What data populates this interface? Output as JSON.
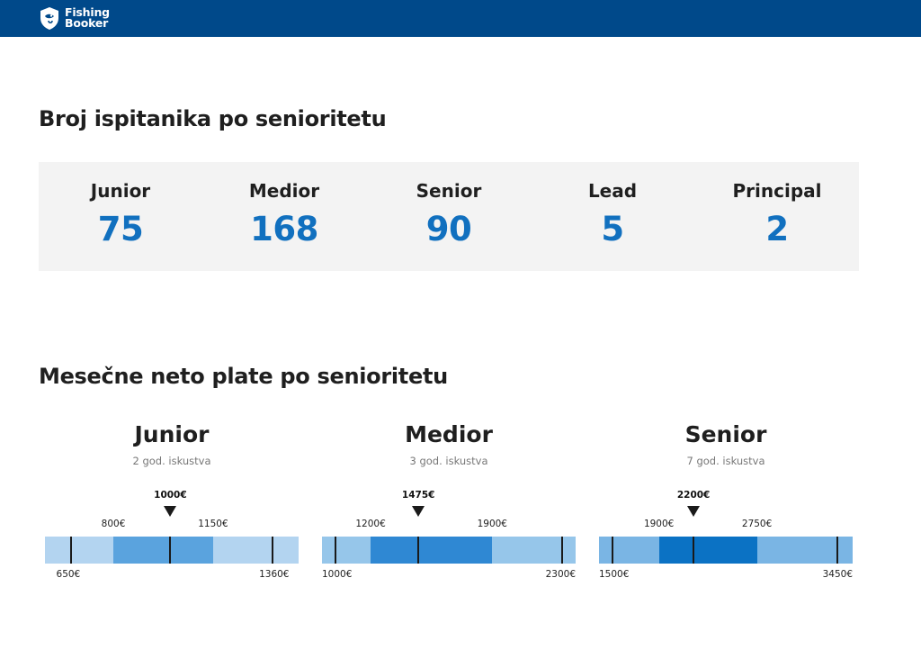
{
  "header": {
    "brand_line1": "Fishing",
    "brand_line2": "Booker",
    "bg_color": "#00498a"
  },
  "headcount": {
    "title": "Broj ispitanika po senioritetu",
    "items": [
      {
        "label": "Junior",
        "value": "75"
      },
      {
        "label": "Medior",
        "value": "168"
      },
      {
        "label": "Senior",
        "value": "90"
      },
      {
        "label": "Lead",
        "value": "5"
      },
      {
        "label": "Principal",
        "value": "2"
      }
    ],
    "value_color": "#1170bf"
  },
  "salaries": {
    "title": "Mesečne neto plate po senioritetu",
    "levels": [
      {
        "name": "Junior",
        "experience": "2 god. iskustva",
        "median_label": "1000€",
        "q1_label": "800€",
        "q3_label": "1150€",
        "min_label": "650€",
        "max_label": "1360€",
        "range": [
          560,
          1450
        ],
        "min": 650,
        "q1": 800,
        "median": 1000,
        "q3": 1150,
        "max": 1360,
        "outer_color": "#b3d4f0",
        "inner_color": "#5aa3de"
      },
      {
        "name": "Medior",
        "experience": "3 god. iskustva",
        "median_label": "1475€",
        "q1_label": "1200€",
        "q3_label": "1900€",
        "min_label": "1000€",
        "max_label": "2300€",
        "range": [
          920,
          2380
        ],
        "min": 1000,
        "q1": 1200,
        "median": 1475,
        "q3": 1900,
        "max": 2300,
        "outer_color": "#96c6ea",
        "inner_color": "#2f88d3"
      },
      {
        "name": "Senior",
        "experience": "7 god. iskustva",
        "median_label": "2200€",
        "q1_label": "1900€",
        "q3_label": "2750€",
        "min_label": "1500€",
        "max_label": "3450€",
        "range": [
          1380,
          3580
        ],
        "min": 1500,
        "q1": 1900,
        "median": 2200,
        "q3": 2750,
        "max": 3450,
        "outer_color": "#7ab5e4",
        "inner_color": "#0b72c4"
      }
    ]
  }
}
